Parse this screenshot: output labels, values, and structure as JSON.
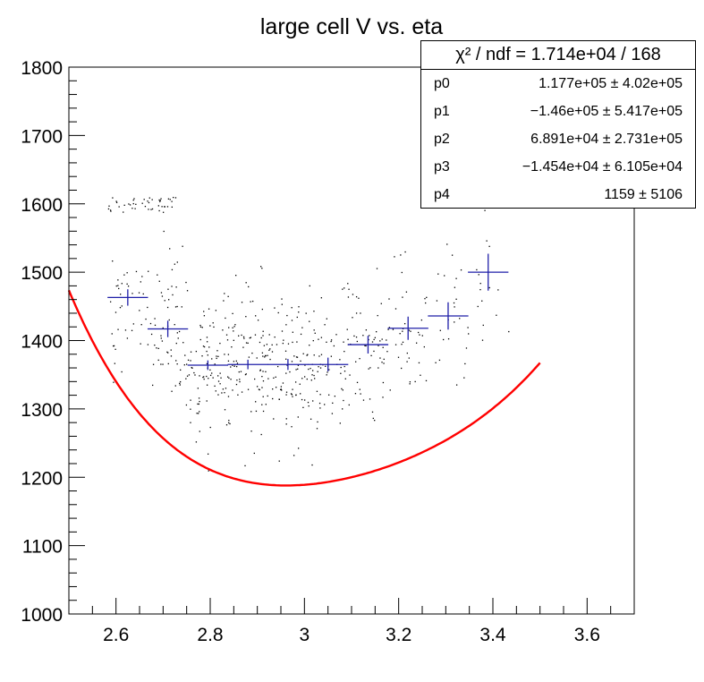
{
  "chart_data": {
    "type": "scatter",
    "title": "large cell V vs. eta",
    "xlabel": "",
    "ylabel": "",
    "xlim": [
      2.5,
      3.7
    ],
    "ylim": [
      1000,
      1800
    ],
    "x_ticks": [
      2.6,
      2.8,
      3,
      3.2,
      3.4,
      3.6
    ],
    "x_tick_labels": [
      "2.6",
      "2.8",
      "3",
      "3.2",
      "3.4",
      "3.6"
    ],
    "y_ticks": [
      1000,
      1100,
      1200,
      1300,
      1400,
      1500,
      1600,
      1700,
      1800
    ],
    "y_tick_labels": [
      "1000",
      "1100",
      "1200",
      "1300",
      "1400",
      "1500",
      "1600",
      "1700",
      "1800"
    ],
    "grid": false,
    "colors": {
      "points": "#000000",
      "profile": "#1f1fa8",
      "fit": "#ff0000"
    },
    "profile": {
      "x": [
        2.625,
        2.71,
        2.795,
        2.88,
        2.965,
        3.05,
        3.135,
        3.22,
        3.305,
        3.39
      ],
      "y": [
        1463,
        1417,
        1364,
        1365,
        1365,
        1365,
        1394,
        1418,
        1436,
        1500
      ],
      "x_err": [
        0.043,
        0.043,
        0.043,
        0.043,
        0.043,
        0.043,
        0.043,
        0.043,
        0.043,
        0.043
      ],
      "y_err": [
        12,
        12,
        7,
        7,
        8,
        10,
        13,
        17,
        20,
        27
      ]
    },
    "fit": {
      "function": "pol4",
      "x_range": [
        2.5,
        3.5
      ],
      "coefficients": [
        117700,
        -146000,
        68910,
        -14540,
        1159
      ]
    },
    "stats": {
      "header": "χ² / ndf = 1.714e+04 / 168",
      "params": [
        {
          "name": "p0",
          "value": "1.177e+05 ± 4.02e+05"
        },
        {
          "name": "p1",
          "value": "−1.46e+05 ± 5.417e+05"
        },
        {
          "name": "p2",
          "value": "6.891e+04 ± 2.731e+05"
        },
        {
          "name": "p3",
          "value": "−1.454e+04 ± 6.105e+04"
        },
        {
          "name": "p4",
          "value": "1159 ±  5106"
        }
      ]
    }
  }
}
